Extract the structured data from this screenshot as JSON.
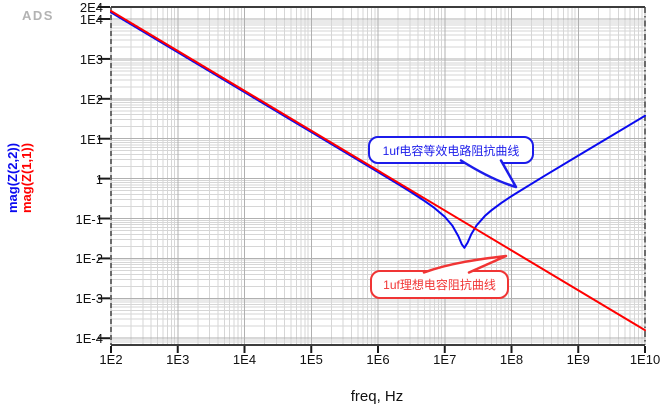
{
  "logo": "ADS",
  "chart_data": {
    "type": "line",
    "title": "",
    "xlabel": "freq, Hz",
    "ylabel": "",
    "x_scale": "log",
    "y_scale": "log",
    "x_log_range": [
      2,
      10
    ],
    "y_log_range": [
      -4.17,
      4.301
    ],
    "grid": true,
    "x_ticks": [
      {
        "label": "1E2",
        "log": 2
      },
      {
        "label": "1E3",
        "log": 3
      },
      {
        "label": "1E4",
        "log": 4
      },
      {
        "label": "1E5",
        "log": 5
      },
      {
        "label": "1E6",
        "log": 6
      },
      {
        "label": "1E7",
        "log": 7
      },
      {
        "label": "1E8",
        "log": 8
      },
      {
        "label": "1E9",
        "log": 9
      },
      {
        "label": "1E10",
        "log": 10
      }
    ],
    "y_ticks": [
      {
        "label": "2E4",
        "log": 4.301
      },
      {
        "label": "1E4",
        "log": 4
      },
      {
        "label": "1E3",
        "log": 3
      },
      {
        "label": "1E2",
        "log": 2
      },
      {
        "label": "1E1",
        "log": 1
      },
      {
        "label": "1",
        "log": 0
      },
      {
        "label": "1E-1",
        "log": -1
      },
      {
        "label": "1E-2",
        "log": -2
      },
      {
        "label": "1E-3",
        "log": -3
      },
      {
        "label": "1E-4",
        "log": -4
      }
    ],
    "series": [
      {
        "name": "mag(Z(2,2))",
        "color": "#0a0af0",
        "points": [
          [
            100.0,
            15900
          ],
          [
            1000.0,
            1590
          ],
          [
            10000.0,
            159
          ],
          [
            100000.0,
            15.9
          ],
          [
            1000000.0,
            1.585
          ],
          [
            2000000.0,
            0.787
          ],
          [
            3000000.0,
            0.519
          ],
          [
            5000000.0,
            0.297
          ],
          [
            7000000.0,
            0.199
          ],
          [
            10000000.0,
            0.12
          ],
          [
            13000000.0,
            0.072
          ],
          [
            16000000.0,
            0.039
          ],
          [
            18000000.0,
            0.0245
          ],
          [
            19700000.0,
            0.02
          ],
          [
            22000000.0,
            0.027
          ],
          [
            25000000.0,
            0.044
          ],
          [
            30000000.0,
            0.073
          ],
          [
            40000000.0,
            0.126
          ],
          [
            50000000.0,
            0.174
          ],
          [
            70000000.0,
            0.265
          ],
          [
            100000000.0,
            0.394
          ],
          [
            300000000.0,
            1.22
          ],
          [
            1000000000.0,
            4.08
          ],
          [
            3000000000.0,
            12.2
          ],
          [
            10000000000.0,
            40.8
          ]
        ]
      },
      {
        "name": "mag(Z(1,1))",
        "color": "#ff0000",
        "points": [
          [
            100.0,
            15900
          ],
          [
            10000000000.0,
            0.000159
          ]
        ]
      }
    ],
    "callouts": [
      {
        "text": "1uf电容等效电路阻抗曲线",
        "color": "#1c1cea",
        "points_to": "equivalent-circuit-curve"
      },
      {
        "text": "1uf理想电容阻抗曲线",
        "color": "#f03535",
        "points_to": "ideal-capacitor-curve"
      }
    ],
    "colors": {
      "grid_major": "#b0b0b0",
      "grid_minor": "#d6d6d6",
      "axis": "#3c3c3c",
      "tick": "#1a1a1a"
    }
  }
}
